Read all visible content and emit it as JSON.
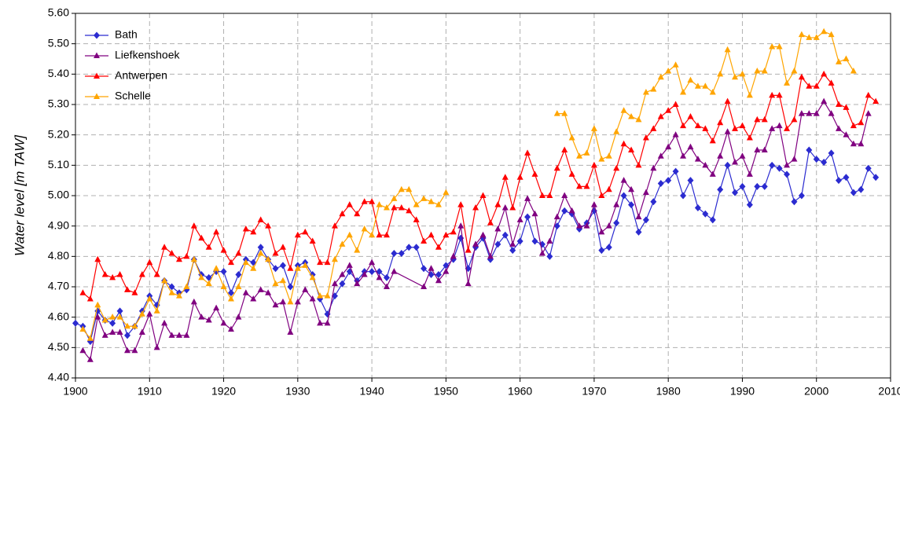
{
  "chart_data": {
    "type": "line",
    "y_label": "Water level [m TAW]",
    "xlim": [
      1900,
      2010
    ],
    "xticks": [
      1900,
      1910,
      1920,
      1930,
      1940,
      1950,
      1960,
      1970,
      1980,
      1990,
      2000,
      2010
    ],
    "ylim": [
      4.4,
      5.6
    ],
    "yticks": [
      {
        "value": 4.4,
        "label": "4.40"
      },
      {
        "value": 4.5,
        "label": "4.50"
      },
      {
        "value": 4.6,
        "label": "4.60"
      },
      {
        "value": 4.7,
        "label": "4.70"
      },
      {
        "value": 4.8,
        "label": "4.80"
      },
      {
        "value": 4.9,
        "label": "4.90"
      },
      {
        "value": 5.0,
        "label": "5.00"
      },
      {
        "value": 5.1,
        "label": "5.10"
      },
      {
        "value": 5.2,
        "label": "5.20"
      },
      {
        "value": 5.3,
        "label": "5.30"
      },
      {
        "value": 5.4,
        "label": "5.40"
      },
      {
        "value": 5.5,
        "label": "5.50"
      },
      {
        "value": 5.6,
        "label": "5.60"
      }
    ],
    "grid": true,
    "legend": "top-left",
    "series": [
      {
        "name": "Bath",
        "color": "#2b2bd0",
        "marker": "diamond",
        "x": [
          1900,
          1901,
          1902,
          1903,
          1904,
          1905,
          1906,
          1907,
          1908,
          1909,
          1910,
          1911,
          1912,
          1913,
          1914,
          1915,
          1916,
          1917,
          1918,
          1919,
          1920,
          1921,
          1922,
          1923,
          1924,
          1925,
          1926,
          1927,
          1928,
          1929,
          1930,
          1931,
          1932,
          1933,
          1934,
          1935,
          1936,
          1937,
          1938,
          1939,
          1940,
          1941,
          1942,
          1943,
          1944,
          1945,
          1946,
          1947,
          1948,
          1949,
          1950,
          1951,
          1952,
          1953,
          1954,
          1955,
          1956,
          1957,
          1958,
          1959,
          1960,
          1961,
          1962,
          1963,
          1964,
          1965,
          1966,
          1967,
          1968,
          1969,
          1970,
          1971,
          1972,
          1973,
          1974,
          1975,
          1976,
          1977,
          1978,
          1979,
          1980,
          1981,
          1982,
          1983,
          1984,
          1985,
          1986,
          1987,
          1988,
          1989,
          1990,
          1991,
          1992,
          1993,
          1994,
          1995,
          1996,
          1997,
          1998,
          1999,
          2000,
          2001,
          2002,
          2003,
          2004,
          2005,
          2006,
          2007,
          2008
        ],
        "values": [
          4.58,
          4.57,
          4.52,
          4.62,
          4.59,
          4.58,
          4.62,
          4.54,
          4.57,
          4.62,
          4.67,
          4.64,
          4.72,
          4.7,
          4.68,
          4.69,
          4.79,
          4.74,
          4.73,
          4.75,
          4.75,
          4.68,
          4.74,
          4.79,
          4.78,
          4.83,
          4.79,
          4.76,
          4.77,
          4.7,
          4.77,
          4.78,
          4.74,
          4.66,
          4.61,
          4.67,
          4.71,
          4.75,
          4.72,
          4.75,
          4.75,
          4.75,
          4.73,
          4.81,
          4.81,
          4.83,
          4.83,
          4.76,
          4.74,
          4.74,
          4.77,
          4.79,
          4.86,
          4.76,
          4.83,
          4.86,
          4.79,
          4.84,
          4.87,
          4.82,
          4.85,
          4.93,
          4.85,
          4.84,
          4.8,
          4.9,
          4.95,
          4.94,
          4.89,
          4.91,
          4.95,
          4.82,
          4.83,
          4.91,
          5.0,
          4.97,
          4.88,
          4.92,
          4.98,
          5.04,
          5.05,
          5.08,
          5.0,
          5.05,
          4.96,
          4.94,
          4.92,
          5.02,
          5.1,
          5.01,
          5.03,
          4.97,
          5.03,
          5.03,
          5.1,
          5.09,
          5.07,
          4.98,
          5.0,
          5.15,
          5.12,
          5.11,
          5.14,
          5.05,
          5.06,
          5.01,
          5.02,
          5.09,
          5.06
        ]
      },
      {
        "name": "Liefkenshoek",
        "color": "#800080",
        "marker": "triangle",
        "x": [
          1901,
          1902,
          1903,
          1904,
          1905,
          1906,
          1907,
          1908,
          1909,
          1910,
          1911,
          1912,
          1913,
          1914,
          1915,
          1916,
          1917,
          1918,
          1919,
          1920,
          1921,
          1922,
          1923,
          1924,
          1925,
          1926,
          1927,
          1928,
          1929,
          1930,
          1931,
          1932,
          1933,
          1934,
          1935,
          1936,
          1937,
          1938,
          1939,
          1940,
          1941,
          1942,
          1943,
          1947,
          1948,
          1949,
          1950,
          1951,
          1952,
          1953,
          1954,
          1955,
          1956,
          1957,
          1958,
          1959,
          1960,
          1961,
          1962,
          1963,
          1964,
          1965,
          1966,
          1967,
          1968,
          1969,
          1970,
          1971,
          1972,
          1973,
          1974,
          1975,
          1976,
          1977,
          1978,
          1979,
          1980,
          1981,
          1982,
          1983,
          1984,
          1985,
          1986,
          1987,
          1988,
          1989,
          1990,
          1991,
          1992,
          1993,
          1994,
          1995,
          1996,
          1997,
          1998,
          1999,
          2000,
          2001,
          2002,
          2003,
          2004,
          2005,
          2006,
          2007
        ],
        "values": [
          4.49,
          4.46,
          4.6,
          4.54,
          4.55,
          4.55,
          4.49,
          4.49,
          4.55,
          4.61,
          4.5,
          4.58,
          4.54,
          4.54,
          4.54,
          4.65,
          4.6,
          4.59,
          4.63,
          4.58,
          4.56,
          4.6,
          4.68,
          4.66,
          4.69,
          4.68,
          4.64,
          4.65,
          4.55,
          4.65,
          4.69,
          4.66,
          4.58,
          4.58,
          4.71,
          4.74,
          4.77,
          4.71,
          4.74,
          4.78,
          4.73,
          4.7,
          4.75,
          4.7,
          4.76,
          4.72,
          4.75,
          4.8,
          4.9,
          4.71,
          4.84,
          4.87,
          4.8,
          4.89,
          4.96,
          4.84,
          4.92,
          4.99,
          4.94,
          4.81,
          4.85,
          4.93,
          5.0,
          4.95,
          4.9,
          4.9,
          4.97,
          4.88,
          4.9,
          4.97,
          5.05,
          5.02,
          4.93,
          5.01,
          5.09,
          5.13,
          5.16,
          5.2,
          5.13,
          5.16,
          5.12,
          5.1,
          5.07,
          5.13,
          5.21,
          5.11,
          5.13,
          5.07,
          5.15,
          5.15,
          5.22,
          5.23,
          5.1,
          5.12,
          5.27,
          5.27,
          5.27,
          5.31,
          5.27,
          5.22,
          5.2,
          5.17,
          5.17,
          5.27
        ]
      },
      {
        "name": "Antwerpen",
        "color": "#ff0000",
        "marker": "triangle",
        "x": [
          1901,
          1902,
          1903,
          1904,
          1905,
          1906,
          1907,
          1908,
          1909,
          1910,
          1911,
          1912,
          1913,
          1914,
          1915,
          1916,
          1917,
          1918,
          1919,
          1920,
          1921,
          1922,
          1923,
          1924,
          1925,
          1926,
          1927,
          1928,
          1929,
          1930,
          1931,
          1932,
          1933,
          1934,
          1935,
          1936,
          1937,
          1938,
          1939,
          1940,
          1941,
          1942,
          1943,
          1944,
          1945,
          1946,
          1947,
          1948,
          1949,
          1950,
          1951,
          1952,
          1953,
          1954,
          1955,
          1956,
          1957,
          1958,
          1959,
          1960,
          1961,
          1962,
          1963,
          1964,
          1965,
          1966,
          1967,
          1968,
          1969,
          1970,
          1971,
          1972,
          1973,
          1974,
          1975,
          1976,
          1977,
          1978,
          1979,
          1980,
          1981,
          1982,
          1983,
          1984,
          1985,
          1986,
          1987,
          1988,
          1989,
          1990,
          1991,
          1992,
          1993,
          1994,
          1995,
          1996,
          1997,
          1998,
          1999,
          2000,
          2001,
          2002,
          2003,
          2004,
          2005,
          2006,
          2007,
          2008
        ],
        "values": [
          4.68,
          4.66,
          4.79,
          4.74,
          4.73,
          4.74,
          4.69,
          4.68,
          4.74,
          4.78,
          4.74,
          4.83,
          4.81,
          4.79,
          4.8,
          4.9,
          4.86,
          4.83,
          4.88,
          4.82,
          4.78,
          4.81,
          4.89,
          4.88,
          4.92,
          4.9,
          4.81,
          4.83,
          4.76,
          4.87,
          4.88,
          4.85,
          4.78,
          4.78,
          4.9,
          4.94,
          4.97,
          4.94,
          4.98,
          4.98,
          4.87,
          4.87,
          4.96,
          4.96,
          4.95,
          4.92,
          4.85,
          4.87,
          4.83,
          4.87,
          4.88,
          4.97,
          4.82,
          4.96,
          5.0,
          4.91,
          4.97,
          5.06,
          4.96,
          5.06,
          5.14,
          5.07,
          5.0,
          5.0,
          5.09,
          5.15,
          5.07,
          5.03,
          5.03,
          5.1,
          5.0,
          5.02,
          5.09,
          5.17,
          5.15,
          5.1,
          5.19,
          5.22,
          5.26,
          5.28,
          5.3,
          5.23,
          5.26,
          5.23,
          5.22,
          5.18,
          5.24,
          5.31,
          5.22,
          5.23,
          5.19,
          5.25,
          5.25,
          5.33,
          5.33,
          5.22,
          5.25,
          5.39,
          5.36,
          5.36,
          5.4,
          5.37,
          5.3,
          5.29,
          5.23,
          5.24,
          5.33,
          5.31
        ]
      },
      {
        "name": "Schelle",
        "color": "#ffa500",
        "marker": "triangle",
        "x": [
          1901,
          1902,
          1903,
          1904,
          1905,
          1906,
          1907,
          1908,
          1909,
          1910,
          1911,
          1912,
          1913,
          1914,
          1915,
          1916,
          1917,
          1918,
          1919,
          1920,
          1921,
          1922,
          1923,
          1924,
          1925,
          1926,
          1927,
          1928,
          1929,
          1930,
          1931,
          1932,
          1933,
          1934,
          1935,
          1936,
          1937,
          1938,
          1939,
          1940,
          1941,
          1942,
          1943,
          1944,
          1945,
          1946,
          1947,
          1948,
          1949,
          1950,
          1951,
          1952,
          1953,
          1954,
          1955,
          1956,
          1957,
          1958,
          1959,
          1960,
          1961,
          1962,
          1963,
          1964,
          1965,
          1966,
          1967,
          1968,
          1969,
          1970,
          1971,
          1972,
          1973,
          1974,
          1975,
          1976,
          1977,
          1978,
          1979,
          1980,
          1981,
          1982,
          1983,
          1984,
          1985,
          1986,
          1987,
          1988,
          1989,
          1990,
          1991,
          1992,
          1993,
          1994,
          1995,
          1996,
          1997,
          1998,
          1999,
          2000,
          2001,
          2002,
          2003,
          2004,
          2005
        ],
        "values": [
          4.56,
          4.53,
          4.64,
          4.59,
          4.6,
          4.6,
          4.57,
          4.57,
          4.61,
          4.66,
          4.62,
          4.72,
          4.68,
          4.67,
          4.7,
          4.79,
          4.73,
          4.71,
          4.76,
          4.7,
          4.66,
          4.7,
          4.78,
          4.76,
          4.81,
          4.79,
          4.71,
          4.72,
          4.65,
          4.76,
          4.77,
          4.73,
          4.67,
          4.67,
          4.79,
          4.84,
          4.87,
          4.82,
          4.89,
          4.87,
          4.97,
          4.96,
          4.99,
          5.02,
          5.02,
          4.97,
          4.99,
          4.98,
          4.97,
          5.01,
          null,
          null,
          null,
          null,
          null,
          null,
          null,
          null,
          null,
          null,
          null,
          null,
          null,
          null,
          5.27,
          5.27,
          5.19,
          5.13,
          5.14,
          5.22,
          5.12,
          5.13,
          5.21,
          5.28,
          5.26,
          5.25,
          5.34,
          5.35,
          5.39,
          5.41,
          5.43,
          5.34,
          5.38,
          5.36,
          5.36,
          5.34,
          5.4,
          5.48,
          5.39,
          5.4,
          5.33,
          5.41,
          5.41,
          5.49,
          5.49,
          5.37,
          5.41,
          5.53,
          5.52,
          5.52,
          5.54,
          5.53,
          5.44,
          5.45,
          5.41
        ]
      }
    ]
  }
}
